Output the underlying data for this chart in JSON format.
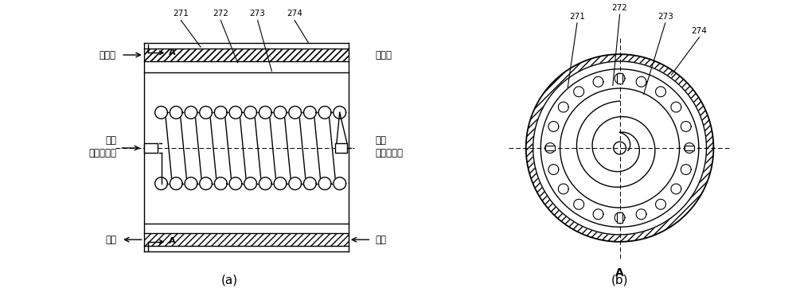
{
  "bg_color": "#ffffff",
  "line_color": "#000000",
  "label_271": "271",
  "label_272": "272",
  "label_273": "273",
  "label_274": "274",
  "label_A": "A",
  "label_a": "(a)",
  "label_b": "(b)",
  "text_liquid_water": "液态水",
  "text_gas_water": "气态水",
  "text_fuel_reactant_line1": "燃料",
  "text_fuel_reactant_line2": "（反应物）",
  "text_fuel_product_line1": "燃料",
  "text_fuel_product_line2": "（生成物）",
  "text_heat_source": "热源"
}
